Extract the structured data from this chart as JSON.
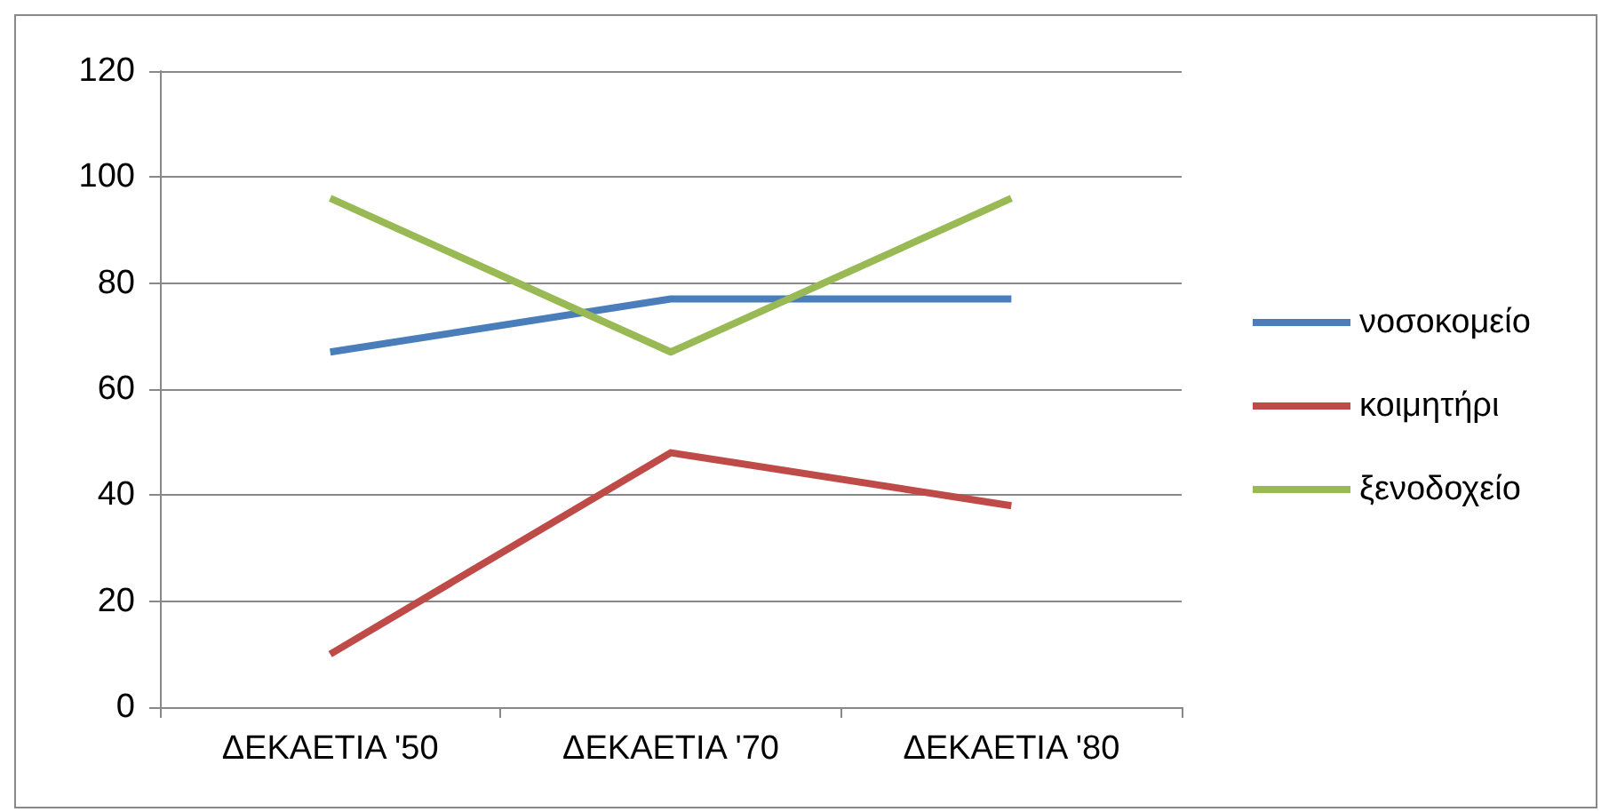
{
  "chart_data": {
    "type": "line",
    "categories": [
      "ΔΕΚΑΕΤΙΑ '50",
      "ΔΕΚΑΕΤΙΑ '70",
      "ΔΕΚΑΕΤΙΑ '80"
    ],
    "series": [
      {
        "name": "νοσοκομείο",
        "color": "#4a7ebb",
        "values": [
          67,
          77,
          77
        ]
      },
      {
        "name": "κοιμητήρι",
        "color": "#be4b48",
        "values": [
          10,
          48,
          38
        ]
      },
      {
        "name": "ξενοδοχείο",
        "color": "#98b954",
        "values": [
          96,
          67,
          96
        ]
      }
    ],
    "ylim": [
      0,
      120
    ],
    "yticks": [
      0,
      20,
      40,
      60,
      80,
      100,
      120
    ],
    "grid": "y",
    "legend": "right",
    "marker": "none",
    "line_style": "solid"
  }
}
